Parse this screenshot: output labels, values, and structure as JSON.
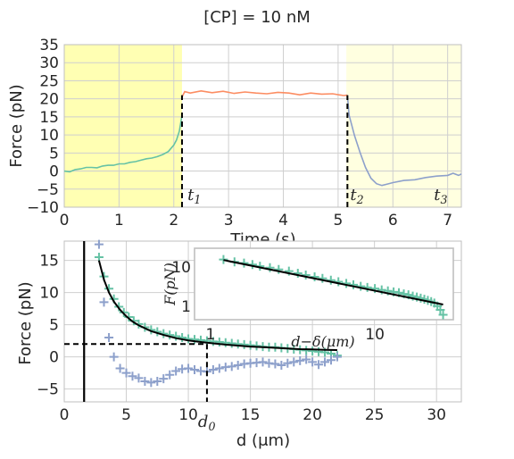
{
  "figure": {
    "title": "[CP] = 10 nM"
  },
  "colors": {
    "green": "#66c2a5",
    "orange": "#fc8d62",
    "blue": "#8da0cb",
    "yellow": "#ffffb3",
    "yellow_light": "#ffffe0",
    "grid": "#cfcfcf",
    "frame": "#bfbfbf",
    "text": "#262626",
    "fit": "#000000"
  },
  "chart_data": [
    {
      "type": "line",
      "title": "[CP] = 10 nM",
      "xlabel": "Time (s)",
      "ylabel": "Force (pN)",
      "xlim": [
        0,
        7.25
      ],
      "ylim": [
        -10,
        35
      ],
      "xticks": [
        "0",
        "1",
        "2",
        "3",
        "4",
        "5",
        "6",
        "7"
      ],
      "yticks": [
        "−10",
        "−5",
        "0",
        "5",
        "10",
        "15",
        "20",
        "25",
        "30",
        "35"
      ],
      "shaded_regions": [
        {
          "x": [
            0,
            2.15
          ],
          "color": "#ffffb3"
        },
        {
          "x": [
            5.15,
            7.25
          ],
          "color": "#ffffe0"
        }
      ],
      "vlines": [
        {
          "x": 2.15,
          "style": "dashed",
          "y": [
            -10,
            21
          ]
        },
        {
          "x": 5.17,
          "style": "dashed",
          "y": [
            -10,
            21
          ]
        }
      ],
      "annotations": [
        {
          "text": "t",
          "sub": "1",
          "x": 2.25,
          "y": -7
        },
        {
          "text": "t",
          "sub": "2",
          "x": 5.22,
          "y": -7
        },
        {
          "text": "t",
          "sub": "3",
          "x": 6.75,
          "y": -7
        }
      ],
      "series": [
        {
          "color": "#66c2a5",
          "x": [
            0,
            0.1,
            0.2,
            0.3,
            0.4,
            0.5,
            0.6,
            0.7,
            0.8,
            0.9,
            1.0,
            1.1,
            1.2,
            1.3,
            1.4,
            1.5,
            1.6,
            1.7,
            1.8,
            1.9,
            2.0,
            2.05,
            2.1,
            2.15
          ],
          "y": [
            0,
            -0.2,
            0.4,
            0.6,
            1.0,
            1.0,
            0.9,
            1.4,
            1.6,
            1.6,
            2.0,
            2.0,
            2.4,
            2.6,
            3.0,
            3.4,
            3.6,
            4.0,
            4.6,
            5.4,
            7.2,
            8.6,
            11.0,
            15.5
          ]
        },
        {
          "color": "#fc8d62",
          "x": [
            2.15,
            2.2,
            2.3,
            2.5,
            2.7,
            2.9,
            3.1,
            3.3,
            3.5,
            3.7,
            3.9,
            4.1,
            4.3,
            4.5,
            4.7,
            4.9,
            5.1,
            5.17
          ],
          "y": [
            20.5,
            22.0,
            21.6,
            22.2,
            21.7,
            22.1,
            21.5,
            21.9,
            21.6,
            21.4,
            21.8,
            21.6,
            21.1,
            21.6,
            21.3,
            21.4,
            20.9,
            21.0
          ]
        },
        {
          "color": "#8da0cb",
          "x": [
            5.17,
            5.2,
            5.3,
            5.4,
            5.5,
            5.6,
            5.7,
            5.8,
            5.9,
            6.0,
            6.2,
            6.4,
            6.6,
            6.8,
            7.0,
            7.1,
            7.2,
            7.25
          ],
          "y": [
            21.0,
            15.5,
            9.8,
            5.2,
            1.0,
            -2.0,
            -3.5,
            -4.0,
            -3.6,
            -3.2,
            -2.6,
            -2.4,
            -1.8,
            -1.4,
            -1.2,
            -0.6,
            -1.2,
            -0.8
          ]
        }
      ]
    },
    {
      "type": "scatter",
      "xlabel": "d (μm)",
      "ylabel": "Force (pN)",
      "xlim": [
        0,
        32
      ],
      "ylim": [
        -7,
        18
      ],
      "xticks": [
        "0",
        "5",
        "10",
        "15",
        "20",
        "25",
        "30"
      ],
      "yticks": [
        "−5",
        "0",
        "5",
        "10",
        "15"
      ],
      "hline": {
        "y": 2,
        "style": "dashed",
        "x": [
          0,
          11.5
        ]
      },
      "vlines": [
        {
          "x": 1.6,
          "style": "solid"
        },
        {
          "x": 11.5,
          "style": "dashed",
          "y": [
            -7,
            2
          ]
        }
      ],
      "annotation": {
        "text": "d",
        "sub": "0",
        "x": 11.5
      },
      "series": [
        {
          "color": "#66c2a5",
          "marker": "+",
          "x": [
            2.8,
            3.2,
            3.6,
            4.0,
            4.4,
            4.8,
            5.2,
            5.6,
            6.0,
            6.5,
            7.0,
            7.5,
            8.0,
            8.5,
            9.0,
            9.5,
            10.0,
            10.5,
            11.0,
            11.5,
            12.0,
            12.5,
            13.0,
            13.5,
            14.0,
            14.5,
            15.0,
            15.5,
            16.0,
            16.5,
            17.0,
            17.5,
            18.0,
            18.5,
            19.0,
            19.5,
            20.0,
            20.5,
            21.0,
            21.5,
            22.0
          ],
          "y": [
            15.5,
            12.5,
            10.6,
            9.0,
            7.8,
            6.9,
            6.2,
            5.6,
            5.1,
            4.6,
            4.2,
            3.9,
            3.6,
            3.4,
            3.2,
            3.0,
            2.8,
            2.7,
            2.6,
            2.5,
            2.4,
            2.3,
            2.2,
            2.1,
            2.0,
            1.9,
            1.8,
            1.7,
            1.6,
            1.5,
            1.5,
            1.4,
            1.3,
            1.2,
            1.1,
            1.0,
            0.9,
            0.8,
            0.7,
            0.5,
            0.2
          ]
        },
        {
          "color": "#8da0cb",
          "marker": "+",
          "x": [
            2.8,
            3.2,
            3.6,
            4.0,
            4.5,
            5.0,
            5.5,
            6.0,
            6.5,
            7.0,
            7.5,
            8.0,
            8.5,
            9.0,
            9.5,
            10.0,
            10.5,
            11.0,
            11.5,
            12.0,
            12.5,
            13.0,
            13.5,
            14.0,
            14.5,
            15.0,
            15.5,
            16.0,
            16.5,
            17.0,
            17.5,
            18.0,
            18.5,
            19.0,
            19.5,
            20.0,
            20.5,
            21.0,
            21.5,
            22.0
          ],
          "y": [
            17.5,
            8.5,
            3.0,
            0.0,
            -1.8,
            -2.5,
            -3.0,
            -3.3,
            -3.8,
            -4.0,
            -3.8,
            -3.4,
            -2.8,
            -2.2,
            -1.9,
            -1.8,
            -2.0,
            -2.2,
            -2.3,
            -2.0,
            -1.8,
            -1.6,
            -1.5,
            -1.3,
            -1.1,
            -1.0,
            -0.9,
            -0.8,
            -1.0,
            -1.1,
            -1.3,
            -1.0,
            -0.8,
            -0.6,
            -0.4,
            -0.8,
            -1.2,
            -0.8,
            -0.5,
            0.0
          ]
        }
      ],
      "fit_line": {
        "color": "#000000",
        "x": [
          2.8,
          3.2,
          3.6,
          4.0,
          4.5,
          5.0,
          5.5,
          6.0,
          7.0,
          8.0,
          9.0,
          10.0,
          11.0,
          12.0,
          13.0,
          14.0,
          15.0,
          16.0,
          17.0,
          18.0,
          19.0,
          20.0,
          21.0,
          22.0
        ],
        "y": [
          15.0,
          12.0,
          10.0,
          8.6,
          7.3,
          6.3,
          5.5,
          4.9,
          4.0,
          3.4,
          2.9,
          2.55,
          2.3,
          2.1,
          1.9,
          1.75,
          1.6,
          1.5,
          1.4,
          1.3,
          1.2,
          1.15,
          1.1,
          1.05
        ]
      }
    },
    {
      "type": "scatter",
      "xlabel": "d−δ(μm)",
      "ylabel": "F(pN)",
      "xscale": "log",
      "yscale": "log",
      "xlim": [
        0.8,
        30
      ],
      "ylim": [
        0.45,
        30
      ],
      "xticks": [
        "1",
        "10"
      ],
      "yticks": [
        "1",
        "10"
      ],
      "series": [
        {
          "color": "#66c2a5",
          "marker": "+",
          "x": [
            1.2,
            1.4,
            1.6,
            1.8,
            2.0,
            2.3,
            2.6,
            3.0,
            3.4,
            3.8,
            4.3,
            4.8,
            5.4,
            6.0,
            6.7,
            7.4,
            8.2,
            9.0,
            10.0,
            11.0,
            12.0,
            13.0,
            14.0,
            15.0,
            16.0,
            17.0,
            18.0,
            19.0,
            20.0,
            21.0,
            22.0,
            23.0,
            24.0,
            25.0,
            26.0
          ],
          "y": [
            15.5,
            13.5,
            12.5,
            11.5,
            10.4,
            9.6,
            8.6,
            7.8,
            6.9,
            6.2,
            5.6,
            5.1,
            4.6,
            4.2,
            3.8,
            3.5,
            3.2,
            3.0,
            2.8,
            2.6,
            2.45,
            2.3,
            2.2,
            2.05,
            1.95,
            1.8,
            1.7,
            1.6,
            1.5,
            1.4,
            1.3,
            1.2,
            1.0,
            0.8,
            0.6
          ]
        }
      ],
      "fit_line": {
        "color": "#000000",
        "x": [
          1.2,
          26.0
        ],
        "y": [
          15.0,
          1.1
        ]
      }
    }
  ]
}
